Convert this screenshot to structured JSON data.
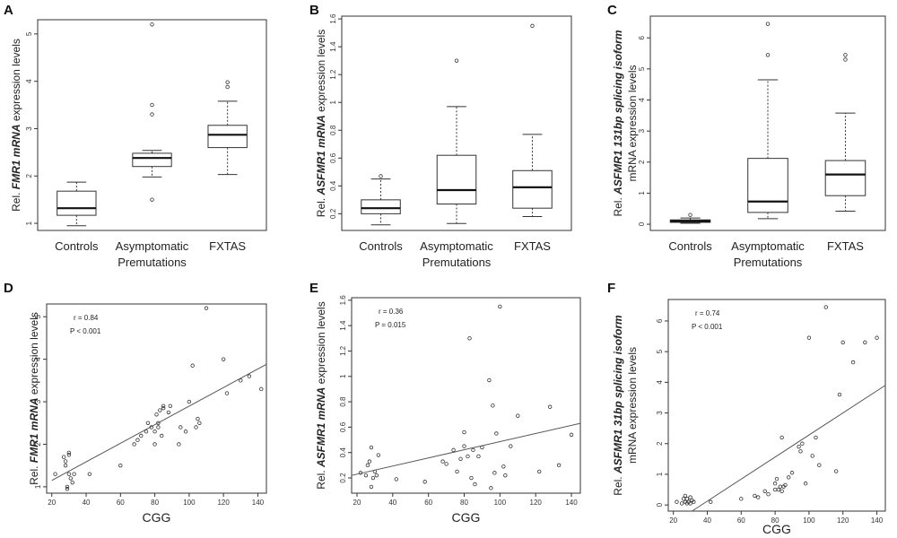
{
  "figure": {
    "letters": [
      "A",
      "B",
      "C",
      "D",
      "E",
      "F"
    ]
  },
  "chart_data": [
    {
      "panel": "A",
      "type": "box",
      "ylabel_pre": "Rel. ",
      "ylabel_it": "FMR1 mRNA",
      "ylabel_post": " expression levels",
      "ylabel_line2": "",
      "categories": [
        "Controls",
        "Asymptomatic",
        "FXTAS"
      ],
      "category_line2": [
        "",
        "Premutations",
        ""
      ],
      "ylim": [
        0.85,
        5.3
      ],
      "yticks": [
        1,
        2,
        3,
        4,
        5
      ],
      "boxes": [
        {
          "whislo": 0.95,
          "q1": 1.17,
          "med": 1.32,
          "q3": 1.68,
          "whishi": 1.87,
          "fliers": []
        },
        {
          "whislo": 1.98,
          "q1": 2.2,
          "med": 2.38,
          "q3": 2.48,
          "whishi": 2.54,
          "fliers": [
            1.5,
            3.3,
            3.5,
            5.2
          ]
        },
        {
          "whislo": 2.03,
          "q1": 2.6,
          "med": 2.87,
          "q3": 3.07,
          "whishi": 3.58,
          "fliers": [
            3.88,
            3.98
          ]
        }
      ]
    },
    {
      "panel": "B",
      "type": "box",
      "ylabel_pre": "Rel. ",
      "ylabel_it": "ASFMR1 mRNA",
      "ylabel_post": " expression levels",
      "ylabel_line2": "",
      "categories": [
        "Controls",
        "Asymptomatic",
        "FXTAS"
      ],
      "category_line2": [
        "",
        "Premutations",
        ""
      ],
      "ylim": [
        0.08,
        1.62
      ],
      "yticks": [
        0.2,
        0.4,
        0.6,
        0.8,
        1.0,
        1.2,
        1.4,
        1.6
      ],
      "boxes": [
        {
          "whislo": 0.12,
          "q1": 0.2,
          "med": 0.24,
          "q3": 0.3,
          "whishi": 0.45,
          "fliers": [
            0.47
          ]
        },
        {
          "whislo": 0.13,
          "q1": 0.27,
          "med": 0.37,
          "q3": 0.62,
          "whishi": 0.97,
          "fliers": [
            1.3
          ]
        },
        {
          "whislo": 0.18,
          "q1": 0.24,
          "med": 0.39,
          "q3": 0.51,
          "whishi": 0.77,
          "fliers": [
            1.55
          ]
        }
      ]
    },
    {
      "panel": "C",
      "type": "box",
      "ylabel_pre": "Rel. ",
      "ylabel_it": "ASFMR1 131bp splicing isoform",
      "ylabel_post": "",
      "ylabel_line2": "mRNA expression levels",
      "categories": [
        "Controls",
        "Asymptomatic",
        "FXTAS"
      ],
      "category_line2": [
        "",
        "Premutations",
        ""
      ],
      "ylim": [
        -0.2,
        6.7
      ],
      "yticks": [
        0,
        1,
        2,
        3,
        4,
        5,
        6
      ],
      "boxes": [
        {
          "whislo": 0.03,
          "q1": 0.06,
          "med": 0.1,
          "q3": 0.14,
          "whishi": 0.2,
          "fliers": [
            0.3
          ]
        },
        {
          "whislo": 0.18,
          "q1": 0.38,
          "med": 0.73,
          "q3": 2.12,
          "whishi": 4.65,
          "fliers": [
            5.45,
            6.45
          ]
        },
        {
          "whislo": 0.42,
          "q1": 0.92,
          "med": 1.6,
          "q3": 2.05,
          "whishi": 3.58,
          "fliers": [
            5.3,
            5.45
          ]
        }
      ]
    },
    {
      "panel": "D",
      "type": "scatter",
      "ylabel_pre": "Rel. ",
      "ylabel_it": "FMR1 mRNA",
      "ylabel_post": " expression levels",
      "ylabel_line2": "",
      "xlabel": "CGG",
      "stat_r": "r = 0.84",
      "stat_p": "P  < 0.001",
      "xlim": [
        17,
        145
      ],
      "ylim": [
        0.85,
        5.3
      ],
      "xticks": [
        20,
        40,
        60,
        80,
        100,
        120,
        140
      ],
      "yticks": [
        1,
        2,
        3,
        4,
        5
      ],
      "fit": {
        "x0": 20,
        "y0": 1.15,
        "x1": 145,
        "y1": 3.88
      },
      "x": [
        22,
        27,
        28,
        28,
        29,
        29,
        30,
        30,
        30,
        31,
        32,
        33,
        42,
        60,
        68,
        70,
        72,
        75,
        76,
        78,
        80,
        80,
        81,
        82,
        82,
        83,
        84,
        85,
        85,
        88,
        89,
        94,
        95,
        98,
        100,
        102,
        104,
        105,
        106,
        110,
        120,
        122,
        130,
        135,
        142
      ],
      "y": [
        1.3,
        1.7,
        1.5,
        1.6,
        1.0,
        0.95,
        1.3,
        1.75,
        1.8,
        1.2,
        1.1,
        1.3,
        1.3,
        1.5,
        2.0,
        2.1,
        2.2,
        2.3,
        2.5,
        2.4,
        2.0,
        2.3,
        2.7,
        2.4,
        2.5,
        2.8,
        2.2,
        2.85,
        2.9,
        2.75,
        2.9,
        2.0,
        2.4,
        2.3,
        3.0,
        3.85,
        2.4,
        2.6,
        2.5,
        5.2,
        4.0,
        3.2,
        3.5,
        3.6,
        3.3
      ]
    },
    {
      "panel": "E",
      "type": "scatter",
      "ylabel_pre": "Rel. ",
      "ylabel_it": "ASFMR1 mRNA",
      "ylabel_post": " expression levels",
      "ylabel_line2": "",
      "xlabel": "CGG",
      "stat_r": "r = 0.36",
      "stat_p": "P = 0.015",
      "xlim": [
        17,
        145
      ],
      "ylim": [
        0.08,
        1.62
      ],
      "xticks": [
        20,
        40,
        60,
        80,
        100,
        120,
        140
      ],
      "yticks": [
        0.2,
        0.4,
        0.6,
        0.8,
        1.0,
        1.2,
        1.4,
        1.6
      ],
      "fit": {
        "x0": 17,
        "y0": 0.22,
        "x1": 145,
        "y1": 0.63
      },
      "x": [
        22,
        25,
        26,
        27,
        28,
        28,
        29,
        30,
        31,
        32,
        42,
        58,
        68,
        70,
        74,
        76,
        78,
        80,
        80,
        82,
        83,
        84,
        85,
        86,
        88,
        90,
        94,
        95,
        96,
        97,
        98,
        100,
        102,
        103,
        106,
        110,
        122,
        128,
        133,
        140
      ],
      "y": [
        0.24,
        0.22,
        0.3,
        0.33,
        0.44,
        0.13,
        0.2,
        0.25,
        0.22,
        0.38,
        0.19,
        0.17,
        0.33,
        0.31,
        0.42,
        0.25,
        0.35,
        0.45,
        0.56,
        0.37,
        1.3,
        0.2,
        0.42,
        0.15,
        0.37,
        0.44,
        0.97,
        0.12,
        0.77,
        0.24,
        0.55,
        1.55,
        0.29,
        0.22,
        0.45,
        0.69,
        0.25,
        0.76,
        0.3,
        0.54
      ]
    },
    {
      "panel": "F",
      "type": "scatter",
      "ylabel_pre": "Rel. ",
      "ylabel_it": "ASFMR1 31bp splicing isoform",
      "ylabel_post": "",
      "ylabel_line2": "mRNA expression levels",
      "xlabel": "CGG",
      "stat_r": "r = 0.74",
      "stat_p": "P  < 0.001",
      "xlim": [
        17,
        145
      ],
      "ylim": [
        -0.2,
        6.7
      ],
      "xticks": [
        20,
        40,
        60,
        80,
        100,
        120,
        140
      ],
      "yticks": [
        0,
        1,
        2,
        3,
        4,
        5,
        6
      ],
      "fit": {
        "x0": 31,
        "y0": -0.2,
        "x1": 145,
        "y1": 3.9
      },
      "x": [
        22,
        25,
        26,
        27,
        27,
        28,
        28,
        29,
        30,
        30,
        31,
        32,
        42,
        60,
        68,
        70,
        74,
        76,
        80,
        80,
        81,
        82,
        83,
        84,
        84,
        85,
        86,
        88,
        90,
        94,
        95,
        96,
        98,
        100,
        102,
        104,
        106,
        110,
        116,
        118,
        120,
        126,
        133,
        140
      ],
      "y": [
        0.1,
        0.05,
        0.2,
        0.3,
        0.1,
        0.05,
        0.2,
        0.1,
        0.25,
        0.05,
        0.15,
        0.1,
        0.1,
        0.2,
        0.3,
        0.25,
        0.45,
        0.35,
        0.5,
        0.7,
        0.85,
        0.5,
        0.6,
        0.45,
        2.2,
        0.6,
        0.65,
        0.9,
        1.05,
        1.9,
        1.75,
        2.0,
        0.7,
        5.45,
        1.6,
        2.2,
        1.3,
        6.45,
        1.1,
        3.6,
        5.3,
        4.65,
        5.3,
        5.45
      ]
    }
  ]
}
